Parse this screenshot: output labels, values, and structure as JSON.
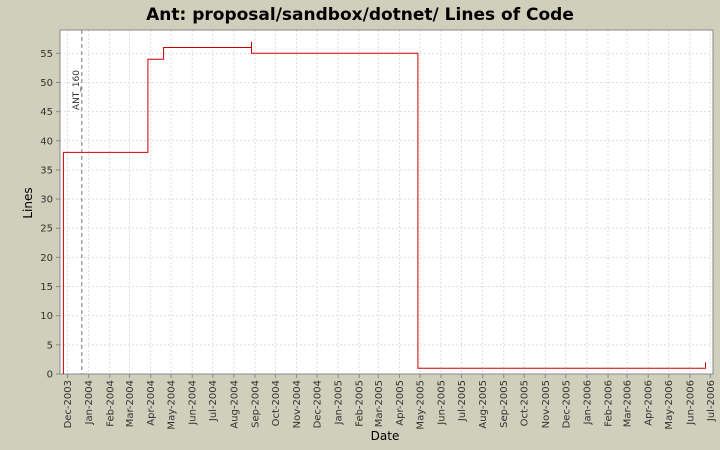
{
  "chart_data": {
    "type": "line",
    "title": "Ant: proposal/sandbox/dotnet/ Lines of Code",
    "xlabel": "Date",
    "ylabel": "Lines",
    "ylim": [
      0,
      59
    ],
    "yticks": [
      0,
      5,
      10,
      15,
      20,
      25,
      30,
      35,
      40,
      45,
      50,
      55
    ],
    "xlim": [
      "2003-11-20",
      "2006-07-05"
    ],
    "xtick_labels": [
      "Dec-2003",
      "Jan-2004",
      "Feb-2004",
      "Mar-2004",
      "Apr-2004",
      "May-2004",
      "Jun-2004",
      "Jul-2004",
      "Aug-2004",
      "Sep-2004",
      "Oct-2004",
      "Nov-2004",
      "Dec-2004",
      "Jan-2005",
      "Feb-2005",
      "Mar-2005",
      "Apr-2005",
      "May-2005",
      "Jun-2005",
      "Jul-2005",
      "Aug-2005",
      "Sep-2005",
      "Oct-2005",
      "Nov-2005",
      "Dec-2005",
      "Jan-2006",
      "Feb-2006",
      "Mar-2006",
      "Apr-2006",
      "May-2006",
      "Jun-2006",
      "Jul-2006"
    ],
    "grid": true,
    "line_color": "#cc0000",
    "series": [
      {
        "points": [
          [
            "2003-11-25",
            0
          ],
          [
            "2003-11-25",
            38
          ],
          [
            "2004-03-28",
            38
          ],
          [
            "2004-03-28",
            54
          ],
          [
            "2004-04-20",
            54
          ],
          [
            "2004-04-20",
            56
          ],
          [
            "2004-08-27",
            56
          ],
          [
            "2004-08-27",
            57
          ],
          [
            "2004-08-27",
            55
          ],
          [
            "2005-04-28",
            55
          ],
          [
            "2005-04-28",
            1
          ],
          [
            "2006-06-24",
            1
          ],
          [
            "2006-06-24",
            2
          ]
        ]
      }
    ],
    "markers": [
      {
        "date": "2003-12-22",
        "label": "ANT_160"
      }
    ]
  }
}
